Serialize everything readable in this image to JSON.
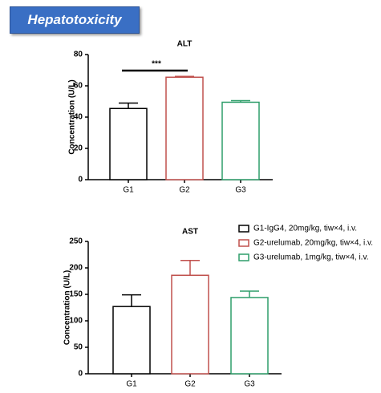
{
  "header": {
    "title": "Hepatotoxicity"
  },
  "chart_data": [
    {
      "type": "bar",
      "title": "ALT",
      "y_label": "Concentration (U/L)",
      "categories": [
        "G1",
        "G2",
        "G3"
      ],
      "values": [
        45.5,
        65.5,
        49.5
      ],
      "errors": [
        3.5,
        0.5,
        1
      ],
      "colors": [
        "#000000",
        "#c0504d",
        "#2e9e6a"
      ],
      "ylim": [
        0,
        80
      ],
      "yticks": [
        0,
        20,
        40,
        60,
        80
      ],
      "annotations": [
        {
          "text": "***"
        }
      ]
    },
    {
      "type": "bar",
      "title": "AST",
      "y_label": "Concentration (U/L)",
      "categories": [
        "G1",
        "G2",
        "G3"
      ],
      "values": [
        127,
        186,
        144
      ],
      "errors": [
        22,
        28,
        12
      ],
      "colors": [
        "#000000",
        "#c0504d",
        "#2e9e6a"
      ],
      "ylim": [
        0,
        250
      ],
      "yticks": [
        0,
        50,
        100,
        150,
        200,
        250
      ],
      "legend": [
        "G1-IgG4, 20mg/kg, tiw×4, i.v.",
        "G2-urelumab, 20mg/kg, tiw×4, i.v.",
        "G3-urelumab, 1mg/kg, tiw×4, i.v."
      ]
    }
  ]
}
